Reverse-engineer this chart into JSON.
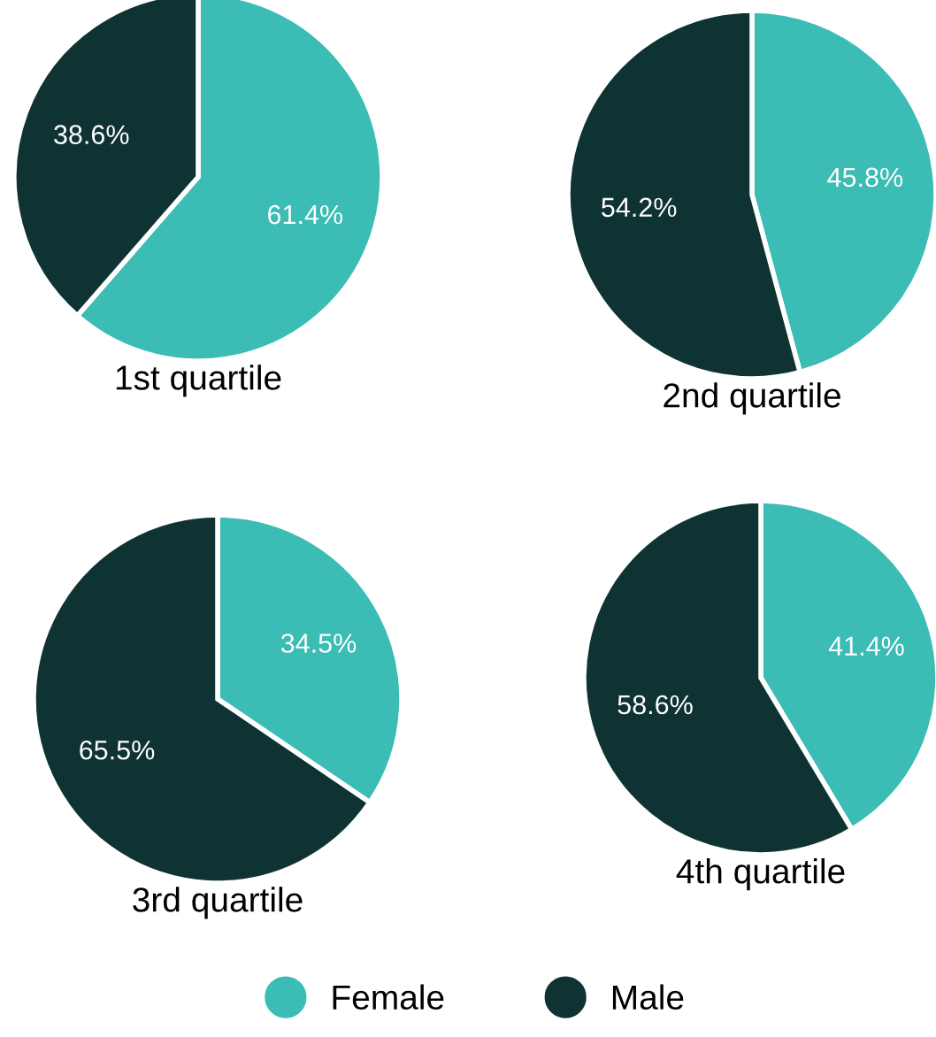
{
  "chart_data": [
    {
      "type": "pie",
      "title": "1st quartile",
      "categories": [
        "Female",
        "Male"
      ],
      "values": [
        61.4,
        38.6
      ],
      "colors": [
        "#3bbcb4",
        "#0f3333"
      ],
      "value_labels": [
        "61.4%",
        "38.6%"
      ],
      "legend": "bottom"
    },
    {
      "type": "pie",
      "title": "2nd quartile",
      "categories": [
        null,
        null
      ],
      "values": [
        45.8,
        54.2
      ],
      "colors": [
        "#3bbcb4",
        "#0f3333"
      ],
      "value_labels": [
        "45.8%",
        "54.2%"
      ]
    },
    {
      "type": "pie",
      "title": "3rd quartile",
      "categories": [
        null,
        null
      ],
      "values": [
        34.5,
        65.5
      ],
      "colors": [
        "#3bbcb4",
        "#0f3333"
      ],
      "value_labels": [
        "34.5%",
        "65.5%"
      ]
    },
    {
      "type": "pie",
      "title": "4th quartile",
      "categories": [
        null,
        null
      ],
      "values": [
        41.4,
        58.6
      ],
      "colors": [
        "#3bbcb4",
        "#0f3333"
      ],
      "value_labels": [
        "41.4%",
        "58.6%"
      ]
    }
  ]
}
